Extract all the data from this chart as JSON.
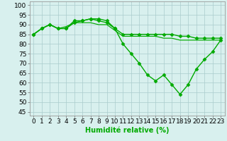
{
  "line1_x": [
    0,
    1,
    2,
    3,
    4,
    5,
    6,
    7,
    8,
    9,
    10,
    11,
    12,
    13,
    14,
    15,
    16,
    17,
    18,
    19,
    20,
    21,
    22,
    23
  ],
  "line1_y": [
    85,
    88,
    90,
    88,
    88,
    91,
    92,
    93,
    93,
    92,
    88,
    85,
    85,
    85,
    85,
    85,
    85,
    85,
    84,
    84,
    83,
    83,
    83,
    83
  ],
  "line2_x": [
    0,
    1,
    2,
    3,
    4,
    5,
    6,
    7,
    8,
    9,
    10,
    11,
    12,
    13,
    14,
    15,
    16,
    17,
    18,
    19,
    20,
    21,
    22,
    23
  ],
  "line2_y": [
    85,
    88,
    90,
    88,
    88,
    92,
    92,
    93,
    92,
    91,
    88,
    80,
    75,
    70,
    64,
    61,
    64,
    59,
    54,
    59,
    67,
    72,
    76,
    82
  ],
  "line3_x": [
    0,
    1,
    2,
    3,
    4,
    5,
    6,
    7,
    8,
    9,
    10,
    11,
    12,
    13,
    14,
    15,
    16,
    17,
    18,
    19,
    20,
    21,
    22,
    23
  ],
  "line3_y": [
    85,
    88,
    90,
    88,
    89,
    91,
    91,
    91,
    90,
    90,
    87,
    84,
    84,
    84,
    84,
    84,
    83,
    83,
    82,
    82,
    82,
    82,
    82,
    82
  ],
  "background_color": "#d8f0ee",
  "grid_color": "#aacccc",
  "line_color": "#00aa00",
  "xlabel": "Humidité relative (%)",
  "yticks": [
    45,
    50,
    55,
    60,
    65,
    70,
    75,
    80,
    85,
    90,
    95,
    100
  ],
  "xlim": [
    -0.5,
    23.5
  ],
  "ylim": [
    43,
    102
  ],
  "xlabel_fontsize": 7,
  "tick_fontsize": 6.5,
  "markersize": 2.5,
  "linewidth": 1.0
}
